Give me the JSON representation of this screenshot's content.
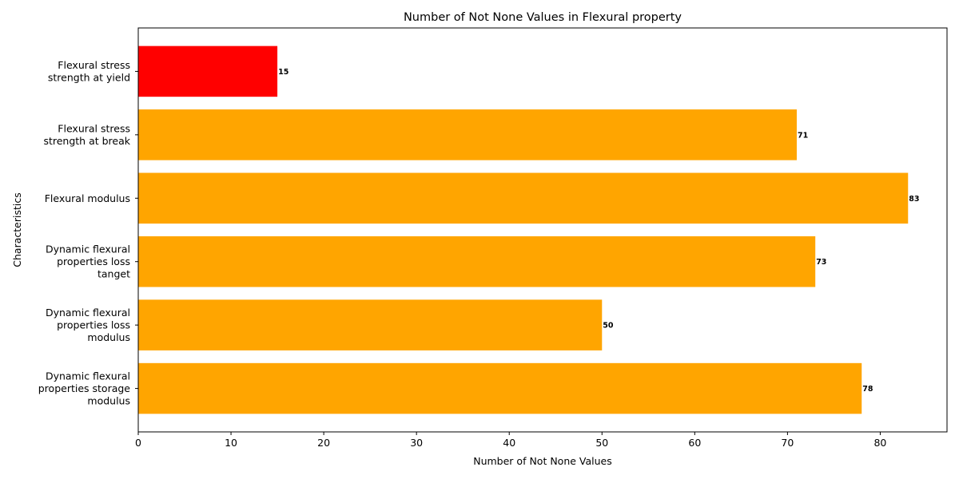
{
  "chart_data": {
    "type": "barh",
    "title": "Number of Not None Values in Flexural property",
    "x_label": "Number of Not None Values",
    "y_label": "Characteristics",
    "categories": [
      "Flexural stress\nstrength at yield",
      "Flexural stress\nstrength at break",
      "Flexural modulus",
      "Dynamic flexural\nproperties loss\ntanget",
      "Dynamic flexural\nproperties loss\nmodulus",
      "Dynamic flexural\nproperties storage\nmodulus"
    ],
    "values": [
      15,
      71,
      83,
      73,
      50,
      78
    ],
    "colors": [
      "#ff0000",
      "#ffa500",
      "#ffa500",
      "#ffa500",
      "#ffa500",
      "#ffa500"
    ],
    "xlim": [
      0,
      87.2
    ],
    "xticks": [
      0,
      10,
      20,
      30,
      40,
      50,
      60,
      70,
      80
    ]
  }
}
